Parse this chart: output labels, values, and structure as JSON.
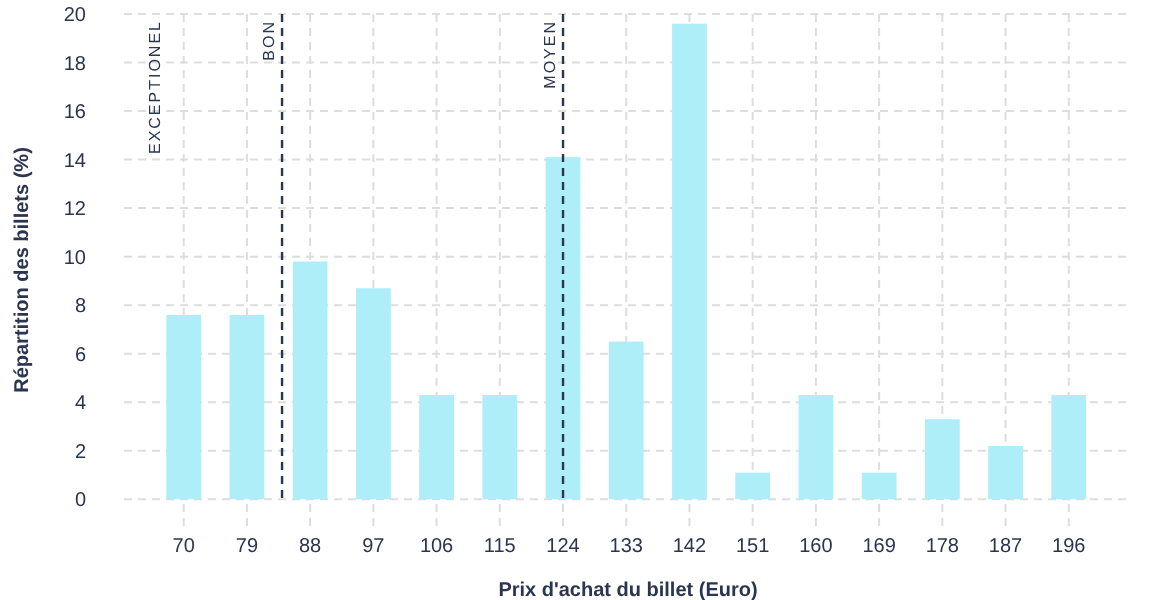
{
  "chart_data": {
    "type": "bar",
    "xlabel": "Prix d'achat du billet (Euro)",
    "ylabel": "Répartition des billets (%)",
    "x": [
      70,
      79,
      88,
      97,
      106,
      115,
      124,
      133,
      142,
      151,
      160,
      169,
      178,
      187,
      196
    ],
    "values": [
      7.6,
      7.6,
      9.8,
      8.7,
      4.3,
      4.3,
      14.1,
      6.5,
      19.6,
      1.1,
      4.3,
      1.1,
      3.3,
      2.2,
      4.3
    ],
    "color": "#aeeef8",
    "xlim": [
      61.5,
      205
    ],
    "xticks": [
      70,
      79,
      88,
      97,
      106,
      115,
      124,
      133,
      142,
      151,
      160,
      169,
      178,
      187,
      196
    ],
    "ylim": [
      -1.1,
      20
    ],
    "yticks": [
      0,
      2,
      4,
      6,
      8,
      10,
      12,
      14,
      16,
      18,
      20
    ],
    "grid": true,
    "ref_lines": [
      {
        "axis": "x",
        "value": 84,
        "label": "BON",
        "color": "#2a3550",
        "line_style": "dashed"
      },
      {
        "axis": "x",
        "value": 124,
        "label": "MOYEN",
        "color": "#2a3550",
        "line_style": "dashed"
      }
    ],
    "annotations": [
      "EXCEPTIONEL"
    ]
  }
}
